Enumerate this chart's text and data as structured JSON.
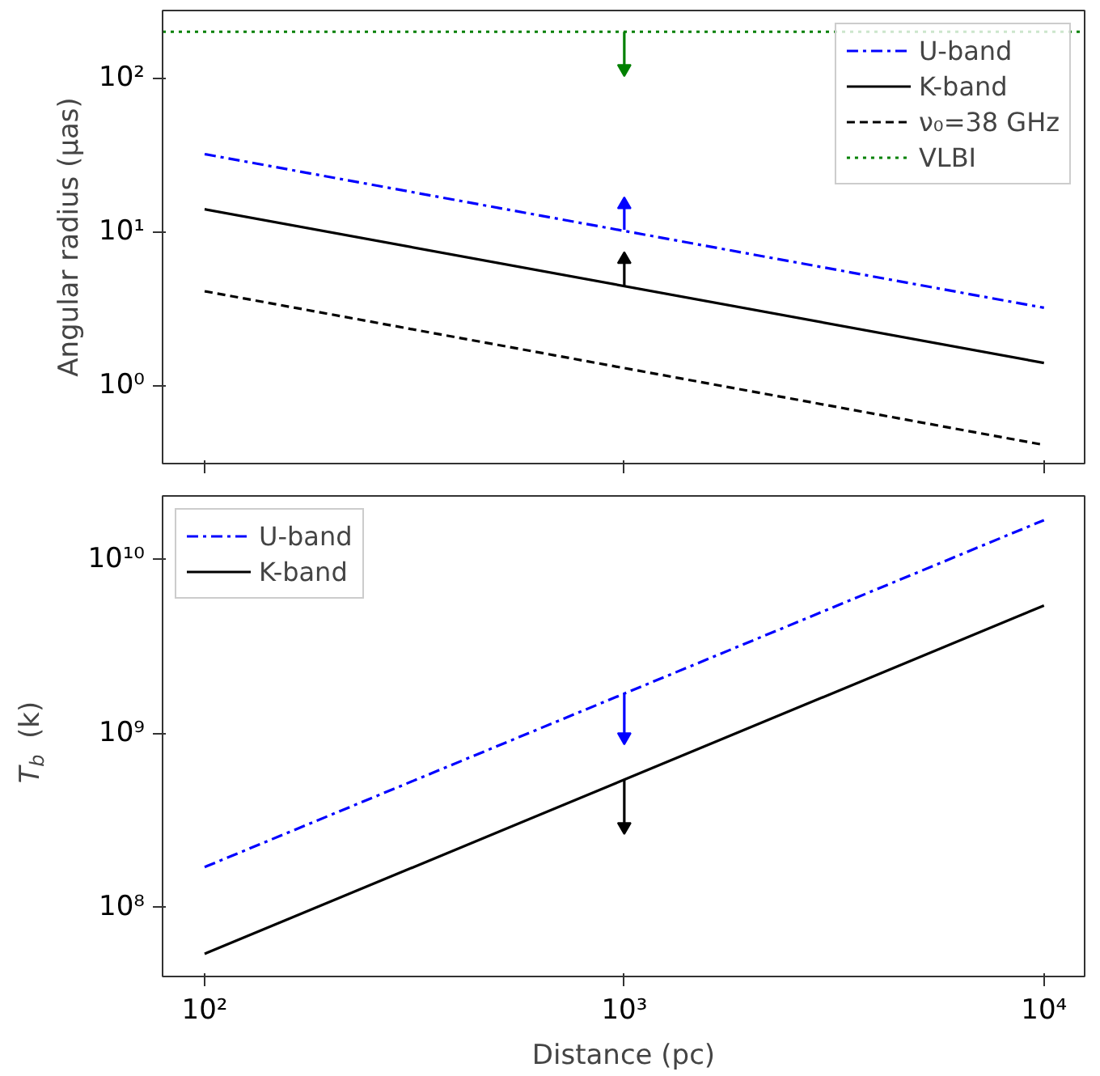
{
  "chart_data": [
    {
      "type": "line",
      "ylabel": "Angular radius (μas)",
      "log": "xy",
      "grid": false,
      "legend": "top right",
      "tick_labels": "y",
      "xlim": [
        79.4,
        12500
      ],
      "xticks": [
        {
          "value": 100,
          "label": null
        },
        {
          "value": 1000,
          "label": null
        },
        {
          "value": 10000,
          "label": null
        }
      ],
      "ylim": [
        0.31,
        275
      ],
      "yticks": [
        {
          "value": 1,
          "label": "10⁰"
        },
        {
          "value": 10,
          "label": "10¹"
        },
        {
          "value": 100,
          "label": "10²"
        }
      ],
      "series": [
        {
          "name": "U-band",
          "color": "#0000ff",
          "line_style": "dashdot",
          "x": [
            100,
            10000
          ],
          "values": [
            32,
            3.2
          ]
        },
        {
          "name": "K-band",
          "color": "#000000",
          "line_style": "solid",
          "x": [
            100,
            10000
          ],
          "values": [
            14,
            1.4
          ]
        },
        {
          "name": "ν₀=38 GHz",
          "color": "#000000",
          "line_style": "dashed",
          "x": [
            100,
            10000
          ],
          "values": [
            4.1,
            0.41
          ]
        },
        {
          "name": "VLBI",
          "color": "#008000",
          "line_style": "dotted",
          "x": [
            79.4,
            12500
          ],
          "values": [
            200,
            200
          ]
        },
        {
          "color": "#0000ff",
          "line_style": "solid",
          "marker": "triangle",
          "x": [
            1000,
            1000
          ],
          "values": [
            10.3,
            15
          ]
        },
        {
          "color": "#000000",
          "line_style": "solid",
          "marker": "triangle",
          "x": [
            1000,
            1000
          ],
          "values": [
            4.4,
            6.6
          ]
        },
        {
          "color": "#008000",
          "line_style": "solid",
          "marker": "triangle",
          "x": [
            1000,
            1000
          ],
          "values": [
            200,
            115
          ]
        }
      ]
    },
    {
      "type": "line",
      "xlabel": "Distance (pc)",
      "ylabel": "T$_{b}$ (k)",
      "log": "xy",
      "grid": false,
      "legend": "top left",
      "xlim": [
        79.4,
        12500
      ],
      "xticks": [
        {
          "value": 100,
          "label": "10²"
        },
        {
          "value": 1000,
          "label": "10³"
        },
        {
          "value": 10000,
          "label": "10⁴"
        }
      ],
      "ylim": [
        40000000,
        23000000000
      ],
      "yticks": [
        {
          "value": 100000000,
          "label": "10⁸"
        },
        {
          "value": 1000000000,
          "label": "10⁹"
        },
        {
          "value": 10000000000,
          "label": "10¹⁰"
        }
      ],
      "series": [
        {
          "name": "U-band",
          "color": "#0000ff",
          "line_style": "dashdot",
          "x": [
            100,
            10000
          ],
          "values": [
            170000000,
            16700000000
          ]
        },
        {
          "name": "K-band",
          "color": "#000000",
          "line_style": "solid",
          "x": [
            100,
            10000
          ],
          "values": [
            54000000,
            5400000000
          ]
        },
        {
          "color": "#0000ff",
          "line_style": "solid",
          "marker": "triangle",
          "x": [
            1000,
            1000
          ],
          "values": [
            1690000000,
            950000000
          ]
        },
        {
          "color": "#000000",
          "line_style": "solid",
          "marker": "triangle",
          "x": [
            1000,
            1000
          ],
          "values": [
            540000000,
            290000000
          ]
        }
      ]
    }
  ]
}
